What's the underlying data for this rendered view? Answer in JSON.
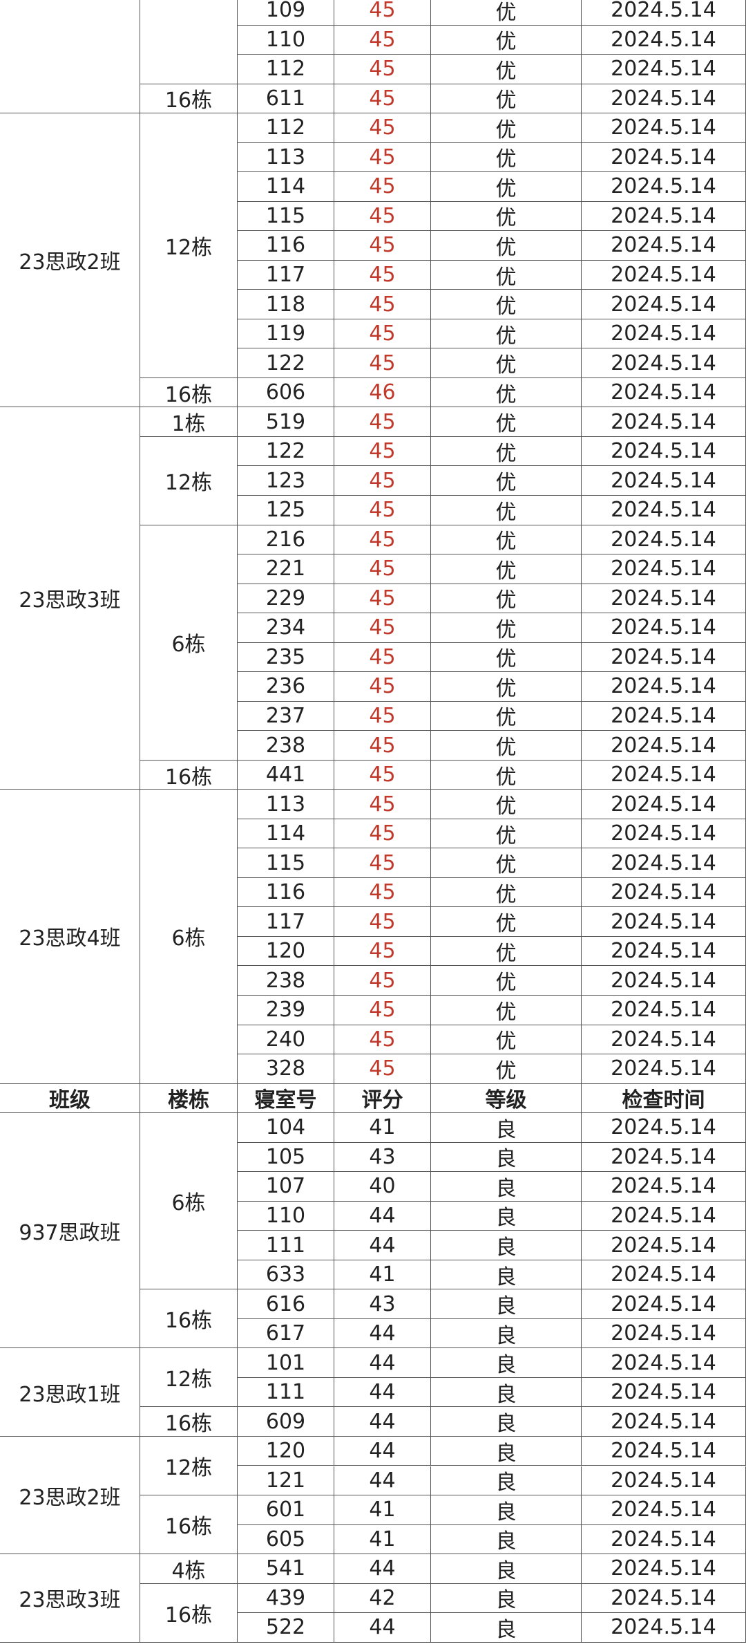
{
  "table1": {
    "groups": [
      {
        "buildings": [
          {
            "rooms": [
              [
                "109",
                "45",
                "优",
                "2024.5.14"
              ],
              [
                "110",
                "45",
                "优",
                "2024.5.14"
              ],
              [
                "112",
                "45",
                "优",
                "2024.5.14"
              ]
            ]
          },
          {
            "name": "16栋",
            "rooms": [
              [
                "611",
                "45",
                "优",
                "2024.5.14"
              ]
            ]
          }
        ]
      },
      {
        "class": "23思政2班",
        "buildings": [
          {
            "name": "12栋",
            "rooms": [
              [
                "112",
                "45",
                "优",
                "2024.5.14"
              ],
              [
                "113",
                "45",
                "优",
                "2024.5.14"
              ],
              [
                "114",
                "45",
                "优",
                "2024.5.14"
              ],
              [
                "115",
                "45",
                "优",
                "2024.5.14"
              ],
              [
                "116",
                "45",
                "优",
                "2024.5.14"
              ],
              [
                "117",
                "45",
                "优",
                "2024.5.14"
              ],
              [
                "118",
                "45",
                "优",
                "2024.5.14"
              ],
              [
                "119",
                "45",
                "优",
                "2024.5.14"
              ],
              [
                "122",
                "45",
                "优",
                "2024.5.14"
              ]
            ]
          },
          {
            "name": "16栋",
            "rooms": [
              [
                "606",
                "46",
                "优",
                "2024.5.14"
              ]
            ]
          }
        ]
      },
      {
        "class": "23思政3班",
        "buildings": [
          {
            "name": "1栋",
            "rooms": [
              [
                "519",
                "45",
                "优",
                "2024.5.14"
              ]
            ]
          },
          {
            "name": "12栋",
            "rooms": [
              [
                "122",
                "45",
                "优",
                "2024.5.14"
              ],
              [
                "123",
                "45",
                "优",
                "2024.5.14"
              ],
              [
                "125",
                "45",
                "优",
                "2024.5.14"
              ]
            ]
          },
          {
            "name": "6栋",
            "rooms": [
              [
                "216",
                "45",
                "优",
                "2024.5.14"
              ],
              [
                "221",
                "45",
                "优",
                "2024.5.14"
              ],
              [
                "229",
                "45",
                "优",
                "2024.5.14"
              ],
              [
                "234",
                "45",
                "优",
                "2024.5.14"
              ],
              [
                "235",
                "45",
                "优",
                "2024.5.14"
              ],
              [
                "236",
                "45",
                "优",
                "2024.5.14"
              ],
              [
                "237",
                "45",
                "优",
                "2024.5.14"
              ],
              [
                "238",
                "45",
                "优",
                "2024.5.14"
              ]
            ]
          },
          {
            "name": "16栋",
            "rooms": [
              [
                "441",
                "45",
                "优",
                "2024.5.14"
              ]
            ]
          }
        ]
      },
      {
        "class": "23思政4班",
        "buildings": [
          {
            "name": "6栋",
            "rooms": [
              [
                "113",
                "45",
                "优",
                "2024.5.14"
              ],
              [
                "114",
                "45",
                "优",
                "2024.5.14"
              ],
              [
                "115",
                "45",
                "优",
                "2024.5.14"
              ],
              [
                "116",
                "45",
                "优",
                "2024.5.14"
              ],
              [
                "117",
                "45",
                "优",
                "2024.5.14"
              ],
              [
                "120",
                "45",
                "优",
                "2024.5.14"
              ],
              [
                "238",
                "45",
                "优",
                "2024.5.14"
              ],
              [
                "239",
                "45",
                "优",
                "2024.5.14"
              ],
              [
                "240",
                "45",
                "优",
                "2024.5.14"
              ],
              [
                "328",
                "45",
                "优",
                "2024.5.14"
              ]
            ]
          }
        ]
      }
    ]
  },
  "header": [
    "班级",
    "楼栋",
    "寝室号",
    "评分",
    "等级",
    "检查时间"
  ],
  "table2": {
    "groups": [
      {
        "class": "937思政班",
        "buildings": [
          {
            "name": "6栋",
            "rooms": [
              [
                "104",
                "41",
                "良",
                "2024.5.14"
              ],
              [
                "105",
                "43",
                "良",
                "2024.5.14"
              ],
              [
                "107",
                "40",
                "良",
                "2024.5.14"
              ],
              [
                "110",
                "44",
                "良",
                "2024.5.14"
              ],
              [
                "111",
                "44",
                "良",
                "2024.5.14"
              ],
              [
                "633",
                "41",
                "良",
                "2024.5.14"
              ]
            ]
          },
          {
            "name": "16栋",
            "rooms": [
              [
                "616",
                "43",
                "良",
                "2024.5.14"
              ],
              [
                "617",
                "44",
                "良",
                "2024.5.14"
              ]
            ]
          }
        ]
      },
      {
        "class": "23思政1班",
        "buildings": [
          {
            "name": "12栋",
            "rooms": [
              [
                "101",
                "44",
                "良",
                "2024.5.14"
              ],
              [
                "111",
                "44",
                "良",
                "2024.5.14"
              ]
            ]
          },
          {
            "name": "16栋",
            "rooms": [
              [
                "609",
                "44",
                "良",
                "2024.5.14"
              ]
            ]
          }
        ]
      },
      {
        "class": "23思政2班",
        "buildings": [
          {
            "name": "12栋",
            "rooms": [
              [
                "120",
                "44",
                "良",
                "2024.5.14"
              ],
              [
                "121",
                "44",
                "良",
                "2024.5.14"
              ]
            ]
          },
          {
            "name": "16栋",
            "rooms": [
              [
                "601",
                "41",
                "良",
                "2024.5.14"
              ],
              [
                "605",
                "41",
                "良",
                "2024.5.14"
              ]
            ]
          }
        ]
      },
      {
        "class": "23思政3班",
        "buildings": [
          {
            "name": "4栋",
            "rooms": [
              [
                "541",
                "44",
                "良",
                "2024.5.14"
              ]
            ]
          },
          {
            "name": "16栋",
            "rooms": [
              [
                "439",
                "42",
                "良",
                "2024.5.14"
              ],
              [
                "522",
                "44",
                "良",
                "2024.5.14"
              ]
            ]
          }
        ]
      }
    ]
  }
}
